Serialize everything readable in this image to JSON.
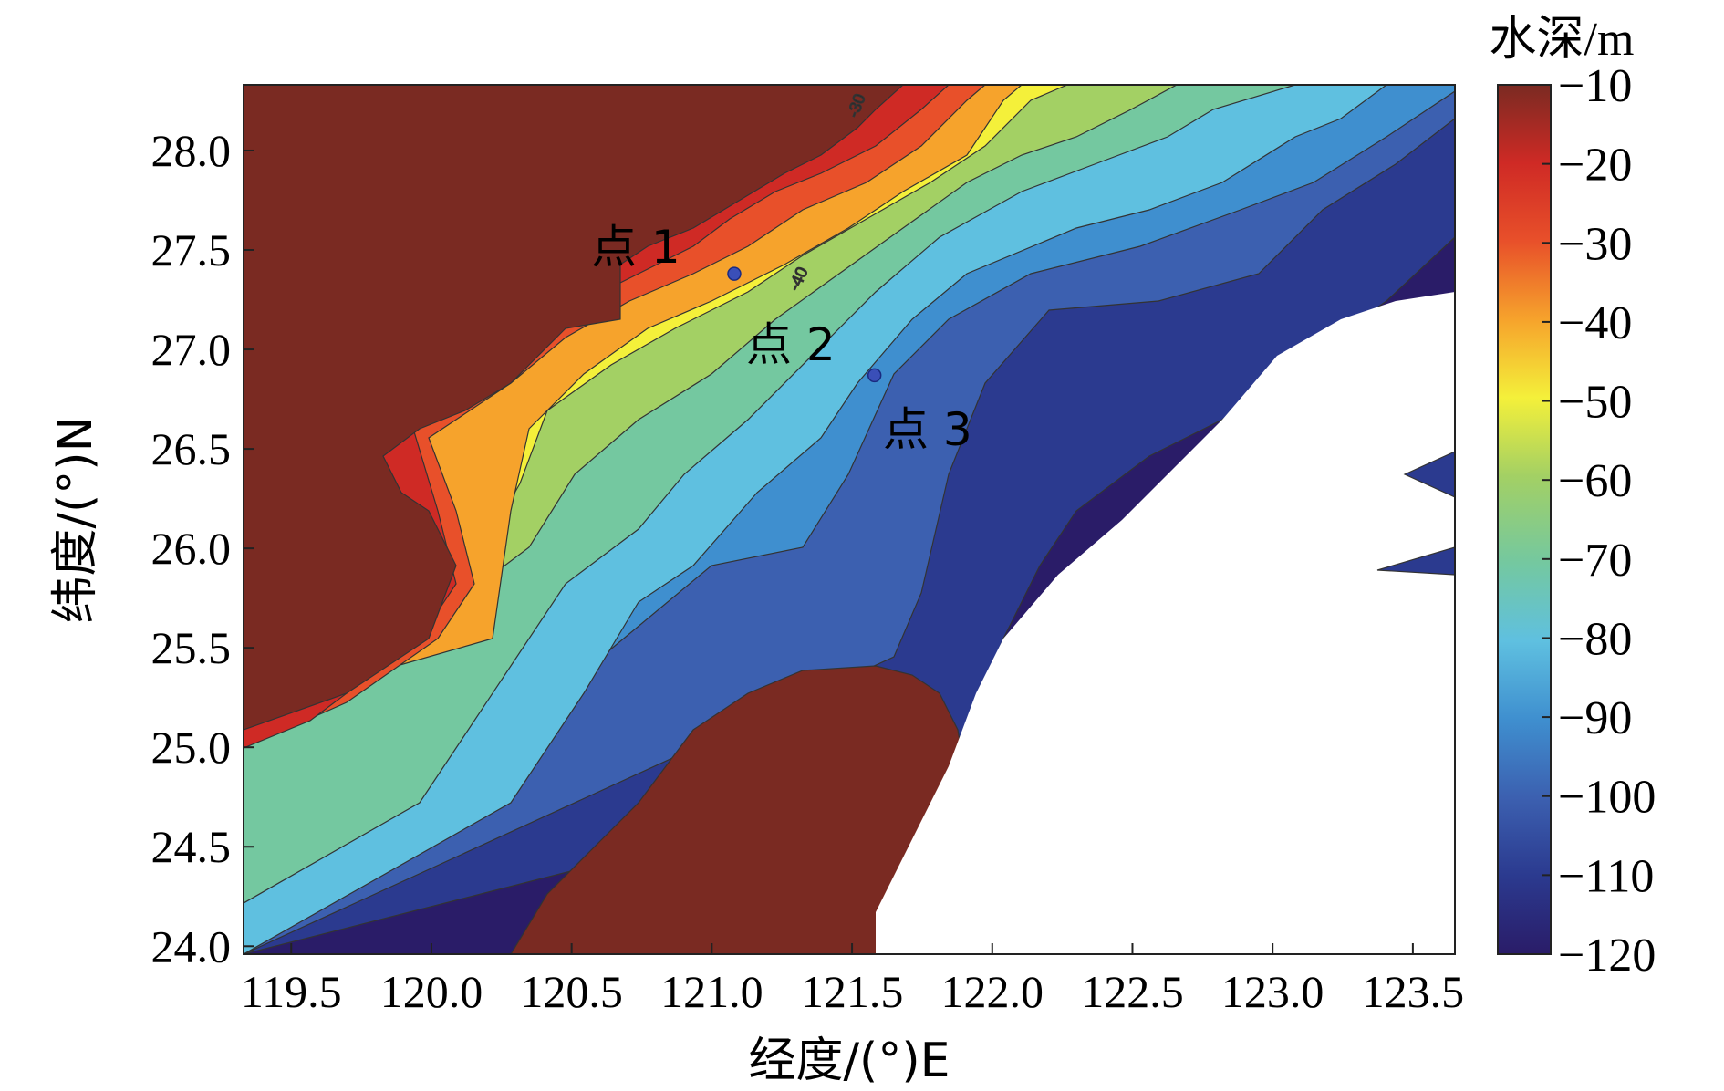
{
  "chart_data": {
    "type": "heatmap",
    "subtype": "filled-contour bathymetry map",
    "xlabel": "经度/(°)E",
    "ylabel": "纬度/(°)N",
    "xlim": [
      119.33,
      123.65
    ],
    "ylim": [
      23.96,
      28.33
    ],
    "x_ticks": [
      "119.5",
      "120.0",
      "120.5",
      "121.0",
      "121.5",
      "122.0",
      "122.5",
      "123.0",
      "123.5"
    ],
    "y_ticks": [
      "24.0",
      "24.5",
      "25.0",
      "25.5",
      "26.0",
      "26.5",
      "27.0",
      "27.5",
      "28.0"
    ],
    "colorbar": {
      "title": "水深/m",
      "range": [
        -120,
        -10
      ],
      "ticks": [
        "−10",
        "−20",
        "−30",
        "−40",
        "−50",
        "−60",
        "−70",
        "−80",
        "−90",
        "−100",
        "−110",
        "−120"
      ]
    },
    "points": [
      {
        "label": "点 1",
        "lon": 121.08,
        "lat": 27.38
      },
      {
        "label": "点 2",
        "lon": 121.58,
        "lat": 26.87
      },
      {
        "label": "点 3",
        "lon": null,
        "lat": null
      }
    ],
    "contour_labels": [
      "-30",
      "-40"
    ],
    "colors": {
      "land": "#7a2a22",
      "no_data": "#ffffff"
    }
  }
}
